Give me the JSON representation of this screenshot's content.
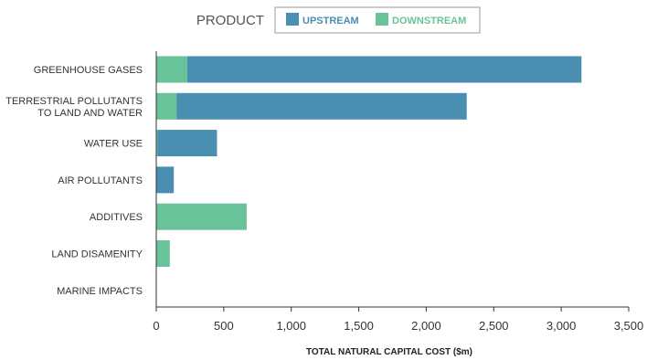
{
  "chart_data": {
    "type": "bar",
    "orientation": "horizontal",
    "stacked": true,
    "legend_title": "PRODUCT",
    "legend_position": "top-center",
    "categories": [
      [
        "GREENHOUSE GASES"
      ],
      [
        "TERRESTRIAL POLLUTANTS",
        "TO LAND AND WATER"
      ],
      [
        "WATER USE"
      ],
      [
        "AIR POLLUTANTS"
      ],
      [
        "ADDITIVES"
      ],
      [
        "LAND DISAMENITY"
      ],
      [
        "MARINE IMPACTS"
      ]
    ],
    "series": [
      {
        "name": "DOWNSTREAM",
        "color": "#69c39a",
        "values": [
          230,
          150,
          10,
          0,
          670,
          100,
          0
        ]
      },
      {
        "name": "UPSTREAM",
        "color": "#4a8fb2",
        "values": [
          2920,
          2150,
          440,
          130,
          0,
          0,
          0
        ]
      }
    ],
    "legend_order": [
      "UPSTREAM",
      "DOWNSTREAM"
    ],
    "xlabel": "TOTAL NATURAL CAPITAL COST ($m)",
    "ylabel": "",
    "xlim": [
      0,
      3500
    ],
    "xticks": [
      0,
      500,
      1000,
      1500,
      2000,
      2500,
      3000,
      3500
    ],
    "xtick_labels": [
      "0",
      "500",
      "1,000",
      "1,500",
      "2,000",
      "2,500",
      "3,000",
      "3,500"
    ],
    "grid": false,
    "axis_color": "#333333"
  }
}
